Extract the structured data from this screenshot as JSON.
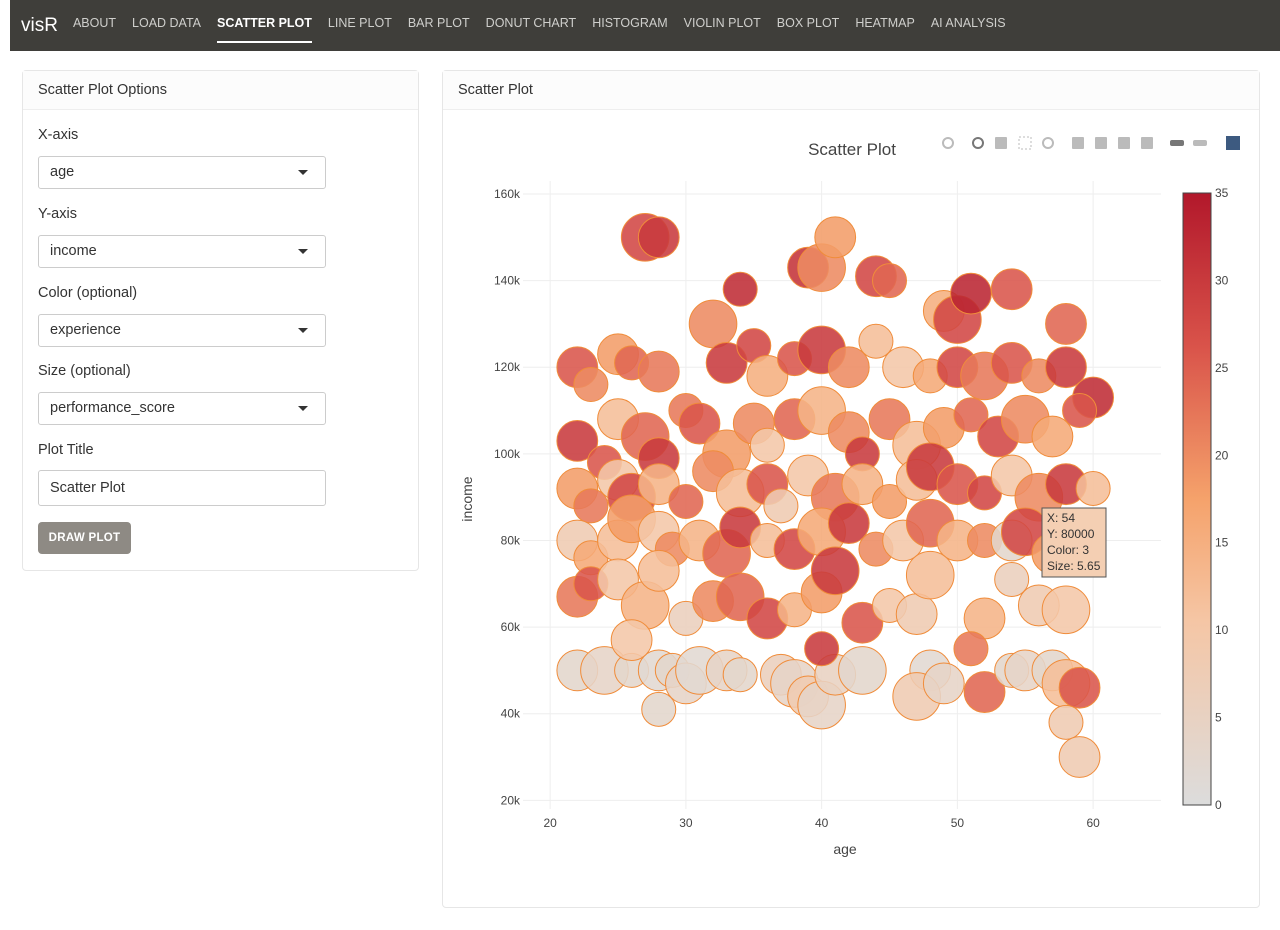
{
  "navbar": {
    "brand": "visR",
    "items": [
      "ABOUT",
      "LOAD DATA",
      "SCATTER PLOT",
      "LINE PLOT",
      "BAR PLOT",
      "DONUT CHART",
      "HISTOGRAM",
      "VIOLIN PLOT",
      "BOX PLOT",
      "HEATMAP",
      "AI ANALYSIS"
    ],
    "active": "SCATTER PLOT"
  },
  "options": {
    "header": "Scatter Plot Options",
    "xaxis_label": "X-axis",
    "xaxis_value": "age",
    "yaxis_label": "Y-axis",
    "yaxis_value": "income",
    "color_label": "Color (optional)",
    "color_value": "experience",
    "size_label": "Size (optional)",
    "size_value": "performance_score",
    "title_label": "Plot Title",
    "title_value": "Scatter Plot",
    "draw_button": "DRAW PLOT"
  },
  "plot_panel": {
    "header": "Scatter Plot"
  },
  "modebar": [
    "camera-icon",
    "zoom-icon",
    "pan-icon",
    "box-select-icon",
    "lasso-select-icon",
    "zoom-in-icon",
    "zoom-out-icon",
    "autoscale-icon",
    "reset-axes-icon",
    "hover-closest-icon",
    "hover-compare-icon",
    "plotly-logo-icon"
  ],
  "tooltip": {
    "x": "X: 54",
    "y": "Y: 80000",
    "color": "Color: 3",
    "size": "Size: 5.65"
  },
  "colors": {
    "low": "#dcdcdc",
    "mid": "#f5a26b",
    "high": "#b2182b",
    "navbar": "#3f3e3a",
    "button": "#8e8a84"
  },
  "chart_data": {
    "type": "scatter",
    "title": "Scatter Plot",
    "xlabel": "age",
    "ylabel": "income",
    "xlim": [
      18,
      65
    ],
    "ylim": [
      18000,
      163000
    ],
    "xticks": [
      20,
      30,
      40,
      50,
      60
    ],
    "yticks": [
      20000,
      40000,
      60000,
      80000,
      100000,
      120000,
      140000,
      160000
    ],
    "ytick_labels": [
      "20k",
      "40k",
      "60k",
      "80k",
      "100k",
      "120k",
      "140k",
      "160k"
    ],
    "colorbar": {
      "title": "",
      "min": 0,
      "max": 35,
      "ticks": [
        0,
        5,
        10,
        15,
        20,
        25,
        30,
        35
      ]
    },
    "grid": true,
    "points": [
      [
        27,
        150000,
        28,
        7
      ],
      [
        28,
        150000,
        30,
        6
      ],
      [
        34,
        138000,
        32,
        5
      ],
      [
        39,
        143000,
        31,
        6
      ],
      [
        40,
        143000,
        20,
        7
      ],
      [
        41,
        150000,
        18,
        6
      ],
      [
        44,
        141000,
        28,
        6
      ],
      [
        45,
        140000,
        24,
        5
      ],
      [
        49,
        133000,
        15,
        6
      ],
      [
        50,
        131000,
        28,
        7
      ],
      [
        51,
        137000,
        33,
        6
      ],
      [
        54,
        138000,
        26,
        6
      ],
      [
        58,
        130000,
        24,
        6
      ],
      [
        22,
        120000,
        26,
        6
      ],
      [
        23,
        116000,
        20,
        5
      ],
      [
        25,
        123000,
        18,
        6
      ],
      [
        26,
        121000,
        24,
        5
      ],
      [
        28,
        119000,
        22,
        6
      ],
      [
        32,
        130000,
        20,
        7
      ],
      [
        33,
        121000,
        30,
        6
      ],
      [
        35,
        125000,
        28,
        5
      ],
      [
        36,
        118000,
        15,
        6
      ],
      [
        38,
        122000,
        26,
        5
      ],
      [
        40,
        124000,
        30,
        7
      ],
      [
        42,
        120000,
        20,
        6
      ],
      [
        44,
        126000,
        12,
        5
      ],
      [
        46,
        120000,
        10,
        6
      ],
      [
        48,
        118000,
        16,
        5
      ],
      [
        50,
        120000,
        28,
        6
      ],
      [
        52,
        118000,
        22,
        7
      ],
      [
        54,
        121000,
        26,
        6
      ],
      [
        56,
        118000,
        20,
        5
      ],
      [
        58,
        120000,
        30,
        6
      ],
      [
        60,
        113000,
        32,
        6
      ],
      [
        22,
        103000,
        30,
        6
      ],
      [
        24,
        98000,
        26,
        5
      ],
      [
        25,
        108000,
        12,
        6
      ],
      [
        27,
        104000,
        24,
        7
      ],
      [
        28,
        99000,
        30,
        6
      ],
      [
        30,
        110000,
        22,
        5
      ],
      [
        31,
        107000,
        26,
        6
      ],
      [
        33,
        100000,
        18,
        7
      ],
      [
        35,
        107000,
        20,
        6
      ],
      [
        36,
        102000,
        10,
        5
      ],
      [
        38,
        108000,
        24,
        6
      ],
      [
        40,
        110000,
        14,
        7
      ],
      [
        42,
        105000,
        20,
        6
      ],
      [
        43,
        100000,
        30,
        5
      ],
      [
        45,
        108000,
        22,
        6
      ],
      [
        47,
        102000,
        12,
        7
      ],
      [
        49,
        106000,
        18,
        6
      ],
      [
        51,
        109000,
        24,
        5
      ],
      [
        53,
        104000,
        28,
        6
      ],
      [
        55,
        108000,
        20,
        7
      ],
      [
        57,
        104000,
        16,
        6
      ],
      [
        59,
        110000,
        26,
        5
      ],
      [
        22,
        92000,
        18,
        6
      ],
      [
        23,
        88000,
        22,
        5
      ],
      [
        25,
        94000,
        10,
        6
      ],
      [
        26,
        90000,
        28,
        7
      ],
      [
        28,
        93000,
        14,
        6
      ],
      [
        30,
        89000,
        24,
        5
      ],
      [
        32,
        96000,
        20,
        6
      ],
      [
        34,
        91000,
        12,
        7
      ],
      [
        36,
        93000,
        26,
        6
      ],
      [
        37,
        88000,
        8,
        5
      ],
      [
        39,
        95000,
        10,
        6
      ],
      [
        41,
        90000,
        22,
        7
      ],
      [
        43,
        93000,
        14,
        6
      ],
      [
        45,
        89000,
        18,
        5
      ],
      [
        47,
        94000,
        12,
        6
      ],
      [
        48,
        97000,
        30,
        7
      ],
      [
        50,
        93000,
        26,
        6
      ],
      [
        52,
        91000,
        28,
        5
      ],
      [
        54,
        95000,
        10,
        6
      ],
      [
        56,
        90000,
        20,
        7
      ],
      [
        58,
        93000,
        30,
        6
      ],
      [
        60,
        92000,
        12,
        5
      ],
      [
        22,
        80000,
        8,
        6
      ],
      [
        23,
        76000,
        16,
        5
      ],
      [
        25,
        80000,
        12,
        6
      ],
      [
        26,
        85000,
        18,
        7
      ],
      [
        28,
        82000,
        10,
        6
      ],
      [
        29,
        78000,
        20,
        5
      ],
      [
        31,
        80000,
        14,
        6
      ],
      [
        33,
        77000,
        24,
        7
      ],
      [
        34,
        83000,
        30,
        6
      ],
      [
        36,
        80000,
        12,
        5
      ],
      [
        38,
        78000,
        28,
        6
      ],
      [
        40,
        82000,
        16,
        7
      ],
      [
        42,
        84000,
        30,
        6
      ],
      [
        44,
        78000,
        20,
        5
      ],
      [
        46,
        80000,
        10,
        6
      ],
      [
        48,
        84000,
        24,
        7
      ],
      [
        50,
        80000,
        14,
        6
      ],
      [
        52,
        80000,
        20,
        5
      ],
      [
        54,
        80000,
        3,
        6
      ],
      [
        55,
        82000,
        28,
        7
      ],
      [
        57,
        77000,
        18,
        6
      ],
      [
        22,
        67000,
        22,
        6
      ],
      [
        23,
        70000,
        26,
        5
      ],
      [
        25,
        71000,
        10,
        6
      ],
      [
        27,
        65000,
        14,
        7
      ],
      [
        28,
        73000,
        12,
        6
      ],
      [
        30,
        62000,
        6,
        5
      ],
      [
        32,
        66000,
        20,
        6
      ],
      [
        34,
        67000,
        24,
        7
      ],
      [
        36,
        62000,
        28,
        6
      ],
      [
        38,
        64000,
        14,
        5
      ],
      [
        40,
        68000,
        18,
        6
      ],
      [
        41,
        73000,
        30,
        7
      ],
      [
        43,
        61000,
        26,
        6
      ],
      [
        45,
        65000,
        10,
        5
      ],
      [
        47,
        63000,
        8,
        6
      ],
      [
        48,
        72000,
        12,
        7
      ],
      [
        52,
        62000,
        14,
        6
      ],
      [
        54,
        71000,
        6,
        5
      ],
      [
        56,
        65000,
        8,
        6
      ],
      [
        58,
        64000,
        10,
        7
      ],
      [
        22,
        50000,
        3,
        6
      ],
      [
        24,
        50000,
        4,
        7
      ],
      [
        26,
        50000,
        3,
        5
      ],
      [
        28,
        50000,
        2,
        6
      ],
      [
        29,
        50000,
        3,
        5
      ],
      [
        30,
        47000,
        4,
        6
      ],
      [
        31,
        50000,
        2,
        7
      ],
      [
        33,
        50000,
        4,
        6
      ],
      [
        34,
        49000,
        3,
        5
      ],
      [
        37,
        49000,
        6,
        6
      ],
      [
        38,
        47000,
        4,
        7
      ],
      [
        39,
        44000,
        8,
        6
      ],
      [
        40,
        42000,
        4,
        7
      ],
      [
        41,
        49000,
        5,
        6
      ],
      [
        43,
        50000,
        3,
        7
      ],
      [
        40,
        55000,
        30,
        5
      ],
      [
        48,
        50000,
        2,
        6
      ],
      [
        47,
        44000,
        8,
        7
      ],
      [
        49,
        47000,
        4,
        6
      ],
      [
        51,
        55000,
        22,
        5
      ],
      [
        52,
        45000,
        24,
        6
      ],
      [
        54,
        50000,
        3,
        5
      ],
      [
        55,
        50000,
        4,
        6
      ],
      [
        57,
        50000,
        3,
        6
      ],
      [
        58,
        47000,
        12,
        7
      ],
      [
        59,
        46000,
        26,
        6
      ],
      [
        26,
        57000,
        10,
        6
      ],
      [
        28,
        41000,
        3,
        5
      ],
      [
        58,
        38000,
        8,
        5
      ],
      [
        59,
        30000,
        8,
        6
      ]
    ]
  }
}
